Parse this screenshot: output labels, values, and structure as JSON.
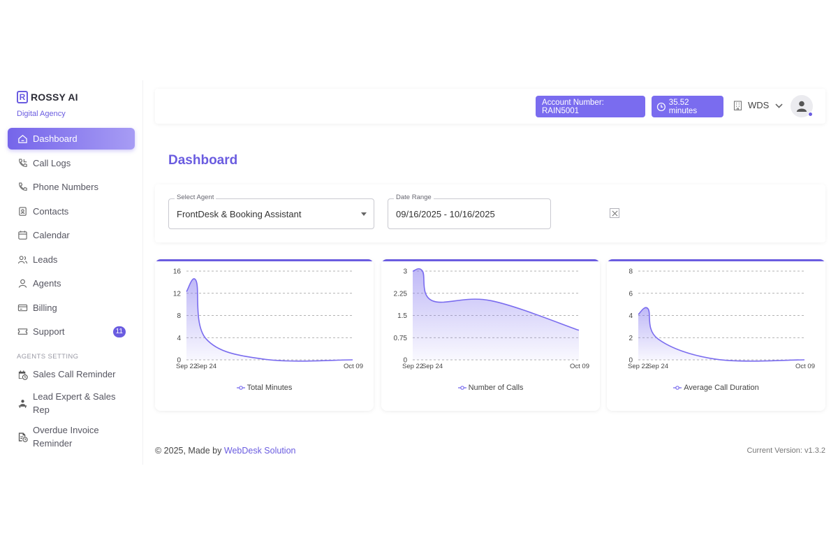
{
  "brand": {
    "name": "ROSSY AI",
    "logo_letter": "R",
    "subtitle": "Digital Agency",
    "accent": "#6a5ce0"
  },
  "sidebar": {
    "items": [
      {
        "label": "Dashboard",
        "icon": "home-icon",
        "active": true
      },
      {
        "label": "Call Logs",
        "icon": "phone-log-icon"
      },
      {
        "label": "Phone Numbers",
        "icon": "phone-icon"
      },
      {
        "label": "Contacts",
        "icon": "contacts-icon"
      },
      {
        "label": "Calendar",
        "icon": "calendar-icon"
      },
      {
        "label": "Leads",
        "icon": "users-icon"
      },
      {
        "label": "Agents",
        "icon": "user-icon"
      },
      {
        "label": "Billing",
        "icon": "card-icon"
      },
      {
        "label": "Support",
        "icon": "ticket-icon",
        "badge": "11"
      }
    ],
    "section_label": "AGENTS SETTING",
    "settings_items": [
      {
        "label": "Sales Call Reminder",
        "icon": "calendar-clock-icon"
      },
      {
        "label": "Lead Expert & Sales Rep",
        "icon": "person-desk-icon"
      },
      {
        "label": "Overdue Invoice Reminder",
        "icon": "invoice-clock-icon"
      }
    ]
  },
  "topbar": {
    "account_label": "Account Number: RAIN5001",
    "minutes_label": "35.52 minutes",
    "org_label": "WDS"
  },
  "page": {
    "title": "Dashboard"
  },
  "filters": {
    "agent": {
      "label": "Select Agent",
      "value": "FrontDesk & Booking Assistant"
    },
    "date": {
      "label": "Date Range",
      "value": "09/16/2025 - 10/16/2025"
    }
  },
  "chart_data": [
    {
      "type": "area",
      "x": [
        "Sep 22",
        "Sep 23",
        "Sep 24",
        "Sep 30",
        "Oct 09"
      ],
      "x_tick_labels": [
        "Sep 22",
        "Sep 24",
        "Oct 09"
      ],
      "series": [
        {
          "name": "Total Minutes",
          "values": [
            12.3,
            14.2,
            3.8,
            0.1,
            0
          ]
        }
      ],
      "y_ticks": [
        0,
        4,
        8,
        12,
        16
      ],
      "ylim": [
        0,
        16
      ],
      "grid": true,
      "legend": "bottom"
    },
    {
      "type": "area",
      "x": [
        "Sep 22",
        "Sep 23",
        "Sep 24",
        "Sep 30",
        "Oct 09"
      ],
      "x_tick_labels": [
        "Sep 22",
        "Sep 24",
        "Oct 09"
      ],
      "series": [
        {
          "name": "Number of Calls",
          "values": [
            3,
            3,
            2,
            2,
            1
          ]
        }
      ],
      "y_ticks": [
        0,
        0.75,
        1.5,
        2.25,
        3
      ],
      "ylim": [
        0,
        3
      ],
      "grid": true,
      "legend": "bottom"
    },
    {
      "type": "area",
      "x": [
        "Sep 22",
        "Sep 23",
        "Sep 24",
        "Sep 30",
        "Oct 09"
      ],
      "x_tick_labels": [
        "Sep 22",
        "Sep 24",
        "Oct 09"
      ],
      "series": [
        {
          "name": "Average Call Duration",
          "values": [
            4.1,
            4.6,
            1.9,
            0.05,
            0
          ]
        }
      ],
      "y_ticks": [
        0,
        2,
        4,
        6,
        8
      ],
      "ylim": [
        0,
        8
      ],
      "grid": true,
      "legend": "bottom"
    }
  ],
  "footer": {
    "copyright": "© 2025, Made by",
    "company": "WebDesk Solution",
    "version": "Current Version: v1.3.2"
  }
}
